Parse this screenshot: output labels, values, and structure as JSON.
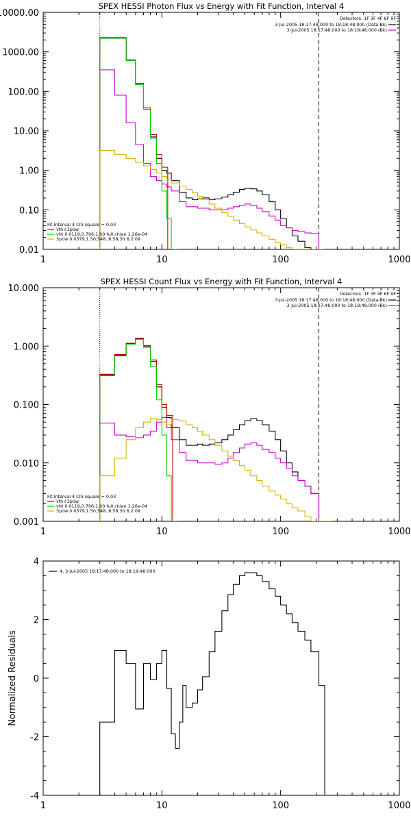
{
  "chart_data": [
    {
      "type": "line",
      "title": "SPEX HESSI Photon Flux vs Energy with Fit Function, Interval 4",
      "xlabel": "",
      "ylabel": "",
      "xscale": "log",
      "yscale": "log",
      "xlim": [
        1,
        1000
      ],
      "ylim": [
        0.01,
        10000
      ],
      "x_ticks": [
        "1",
        "10",
        "100",
        "1000"
      ],
      "y_ticks": [
        "0.01",
        "0.10",
        "1.00",
        "10.00",
        "100.00",
        "1000.00",
        "10000.00"
      ],
      "vlines": [
        {
          "x": 3,
          "style": "dotted"
        },
        {
          "x": 210,
          "style": "dashed"
        }
      ],
      "legend_topright": {
        "detectors": "Detectors: 1F 3F 4F 6F 9F",
        "entries": [
          "3-Jul-2005 18:17:48.000 to 18:18:48.000 (Data-Bk)",
          "3-Jul-2005 18:17:48.000 to 18:18:48.000 (Bk)"
        ]
      },
      "legend_bottomleft": {
        "header": "Fit Interval  4    Chi-square = 0.03",
        "entries": [
          "vth+3pow",
          "vth 0.0119,0.796,1.00  full chian 1.26e-04",
          "3pow 0.0579,1.50,548.,8.58,30.6,2.09"
        ]
      },
      "series": [
        {
          "name": "3-Jul-2005 18:17:48.000 to 18:18:48.000 (Data-Bk)",
          "color": "#000000",
          "x": [
            3,
            4,
            5,
            6,
            7,
            8,
            9,
            10,
            11,
            12,
            14,
            16,
            18,
            20,
            22,
            25,
            28,
            32,
            36,
            40,
            45,
            50,
            56,
            63,
            70,
            80,
            90,
            100,
            112,
            125,
            140,
            160,
            180,
            210
          ],
          "y": [
            2200,
            2200,
            600,
            150,
            35,
            7,
            2,
            1,
            0.85,
            0.55,
            0.28,
            0.2,
            0.18,
            0.19,
            0.2,
            0.18,
            0.19,
            0.21,
            0.24,
            0.28,
            0.33,
            0.35,
            0.34,
            0.3,
            0.24,
            0.16,
            0.1,
            0.06,
            0.035,
            0.022,
            0.016,
            0.011,
            0.01,
            0.01
          ]
        },
        {
          "name": "3-Jul-2005 18:17:48.000 to 18:18:48.000 (Bk)",
          "color": "#cc00cc",
          "x": [
            3,
            4,
            5,
            6,
            7,
            8,
            9,
            10,
            11,
            12,
            14,
            16,
            18,
            20,
            22,
            25,
            28,
            32,
            36,
            40,
            45,
            50,
            56,
            63,
            70,
            80,
            90,
            100,
            112,
            125,
            140,
            160,
            180,
            210
          ],
          "y": [
            350,
            80,
            16,
            4.5,
            1.5,
            0.7,
            0.55,
            0.45,
            0.38,
            0.3,
            0.16,
            0.12,
            0.12,
            0.11,
            0.11,
            0.1,
            0.1,
            0.1,
            0.11,
            0.12,
            0.13,
            0.14,
            0.13,
            0.11,
            0.09,
            0.07,
            0.055,
            0.04,
            0.035,
            0.03,
            0.028,
            0.026,
            0.025,
            0.01
          ]
        },
        {
          "name": "vth+3pow",
          "color": "#cc0000",
          "x": [
            3,
            4,
            5,
            6,
            7,
            8,
            9,
            10
          ],
          "y": [
            2300,
            2300,
            630,
            160,
            38,
            8,
            2.5,
            1.2
          ]
        },
        {
          "name": "vth 0.0119,0.796,1.00  full chian 1.26e-04",
          "color": "#00cc00",
          "x": [
            3,
            4,
            5,
            6,
            7,
            8,
            9,
            10,
            11,
            12
          ],
          "y": [
            2200,
            2200,
            600,
            150,
            35,
            6.5,
            1.5,
            0.3,
            0.06,
            0.01
          ]
        },
        {
          "name": "3pow 0.0579,1.50,548.,8.58,30.6,2.09",
          "color": "#d4b000",
          "x": [
            3,
            4,
            5,
            6,
            7,
            8,
            9,
            10,
            11,
            12,
            14,
            16,
            18,
            20,
            22,
            25,
            28,
            32,
            36,
            40,
            45,
            50,
            56,
            63,
            70,
            80,
            90,
            100,
            112,
            125,
            140,
            160,
            180,
            200
          ],
          "y": [
            3.2,
            2.5,
            2,
            1.6,
            1.3,
            1.05,
            0.85,
            0.7,
            0.58,
            0.48,
            0.4,
            0.33,
            0.27,
            0.22,
            0.18,
            0.14,
            0.11,
            0.085,
            0.068,
            0.055,
            0.045,
            0.037,
            0.031,
            0.026,
            0.022,
            0.018,
            0.015,
            0.013,
            0.011,
            0.01,
            0.01,
            0.01,
            0.01,
            0.01
          ]
        }
      ]
    },
    {
      "type": "line",
      "title": "SPEX HESSI Count Flux vs Energy with Fit Function, Interval 4",
      "xlabel": "",
      "ylabel": "",
      "xscale": "log",
      "yscale": "log",
      "xlim": [
        1,
        1000
      ],
      "ylim": [
        0.001,
        10
      ],
      "x_ticks": [
        "1",
        "10",
        "100",
        "1000"
      ],
      "y_ticks": [
        "0.001",
        "0.010",
        "0.100",
        "1.000",
        "10.000"
      ],
      "vlines": [
        {
          "x": 3,
          "style": "dotted"
        },
        {
          "x": 210,
          "style": "dashed"
        }
      ],
      "legend_topright": {
        "detectors": "Detectors: 1F 3F 4F 6F 9F",
        "entries": [
          "3-Jul-2005 18:17:48.000 to 18:18:48.000 (Data-Bk)",
          "3-Jul-2005 18:17:48.000 to 18:18:48.000 (Bk)"
        ]
      },
      "legend_bottomleft": {
        "header": "Fit Interval  4    Chi-square = 0.03",
        "entries": [
          "vth+3pow",
          "vth 0.0119,0.796,1.00  full chian 1.26e-04",
          "3pow 0.0579,1.50,548.,8.58,30.6,2.09"
        ]
      },
      "series": [
        {
          "name": "3-Jul-2005 18:17:48.000 to 18:18:48.000 (Data-Bk)",
          "color": "#000000",
          "x": [
            3,
            4,
            5,
            6,
            7,
            8,
            9,
            10,
            11,
            12,
            14,
            16,
            18,
            20,
            22,
            25,
            28,
            32,
            36,
            40,
            45,
            50,
            56,
            63,
            70,
            80,
            90,
            100,
            112,
            125,
            140,
            160,
            180,
            210
          ],
          "y": [
            0.32,
            0.7,
            1.1,
            1.35,
            1.0,
            0.55,
            0.2,
            0.09,
            0.06,
            0.04,
            0.025,
            0.02,
            0.02,
            0.021,
            0.02,
            0.021,
            0.022,
            0.025,
            0.03,
            0.037,
            0.045,
            0.053,
            0.057,
            0.053,
            0.045,
            0.035,
            0.025,
            0.016,
            0.01,
            0.007,
            0.005,
            0.004,
            0.003,
            0.001
          ]
        },
        {
          "name": "3-Jul-2005 18:17:48.000 to 18:18:48.000 (Bk)",
          "color": "#cc00cc",
          "x": [
            3,
            4,
            5,
            6,
            7,
            8,
            9,
            10,
            11,
            12,
            14,
            16,
            18,
            20,
            22,
            25,
            28,
            32,
            36,
            40,
            45,
            50,
            56,
            63,
            70,
            80,
            90,
            100,
            112,
            125,
            140,
            160,
            180,
            210
          ],
          "y": [
            0.048,
            0.03,
            0.028,
            0.027,
            0.03,
            0.035,
            0.05,
            0.06,
            0.04,
            0.025,
            0.015,
            0.011,
            0.011,
            0.01,
            0.01,
            0.01,
            0.0095,
            0.01,
            0.012,
            0.015,
            0.018,
            0.021,
            0.022,
            0.02,
            0.017,
            0.015,
            0.012,
            0.01,
            0.008,
            0.006,
            0.005,
            0.004,
            0.003,
            0.001
          ]
        },
        {
          "name": "vth+3pow",
          "color": "#cc0000",
          "x": [
            3,
            4,
            5,
            6,
            7,
            8,
            9,
            10,
            11
          ],
          "y": [
            0.33,
            0.72,
            1.12,
            1.37,
            1.02,
            0.58,
            0.22,
            0.1,
            0.065
          ]
        },
        {
          "name": "vth 0.0119,0.796,1.00  full chian 1.26e-04",
          "color": "#00cc00",
          "x": [
            3,
            4,
            5,
            6,
            7,
            8,
            9,
            10,
            11,
            12
          ],
          "y": [
            0.31,
            0.68,
            1.08,
            1.3,
            0.95,
            0.45,
            0.12,
            0.03,
            0.006,
            0.001
          ]
        },
        {
          "name": "3pow 0.0579,1.50,548.,8.58,30.6,2.09",
          "color": "#d4b000",
          "x": [
            3,
            4,
            5,
            6,
            7,
            8,
            9,
            10,
            11,
            12,
            14,
            16,
            18,
            20,
            22,
            25,
            28,
            32,
            36,
            40,
            45,
            50,
            56,
            63,
            70,
            80,
            90,
            100,
            112,
            125,
            140,
            160,
            180,
            210,
            240
          ],
          "y": [
            0.006,
            0.012,
            0.025,
            0.04,
            0.05,
            0.057,
            0.055,
            0.05,
            0.046,
            0.055,
            0.052,
            0.045,
            0.04,
            0.035,
            0.03,
            0.025,
            0.02,
            0.016,
            0.013,
            0.011,
            0.009,
            0.0075,
            0.006,
            0.005,
            0.004,
            0.0033,
            0.0028,
            0.0024,
            0.002,
            0.0017,
            0.0015,
            0.0012,
            0.001,
            0.001,
            0.001
          ]
        }
      ]
    },
    {
      "type": "line",
      "title": "",
      "xlabel": "",
      "ylabel": "Normalized Residuals",
      "xscale": "log",
      "yscale": "linear",
      "xlim": [
        1,
        1000
      ],
      "ylim": [
        -4,
        4
      ],
      "x_ticks": [
        "1",
        "10",
        "100",
        "1000"
      ],
      "y_ticks": [
        "-4",
        "-2",
        "0",
        "2",
        "4"
      ],
      "legend": {
        "entries": [
          "4, 3-Jul-2005 18:17:48.000 to 18:18:48.000"
        ]
      },
      "series": [
        {
          "name": "4, 3-Jul-2005 18:17:48.000 to 18:18:48.000",
          "color": "#000000",
          "x": [
            3,
            4,
            5,
            6,
            7,
            8,
            9,
            10,
            11,
            12,
            13,
            14,
            15,
            16,
            18,
            20,
            22,
            25,
            28,
            32,
            36,
            40,
            45,
            50,
            56,
            63,
            70,
            80,
            90,
            100,
            112,
            125,
            140,
            160,
            180,
            210
          ],
          "y": [
            -1.5,
            0.95,
            0.5,
            -1.05,
            0.5,
            -0.05,
            0.5,
            0.95,
            -0.35,
            -1.9,
            -2.4,
            -1.5,
            -0.25,
            -1.0,
            -0.85,
            -0.4,
            0.05,
            0.9,
            1.6,
            2.3,
            2.85,
            3.2,
            3.5,
            3.6,
            3.6,
            3.5,
            3.3,
            3.05,
            2.8,
            2.5,
            2.2,
            1.9,
            1.6,
            1.3,
            0.9,
            -0.25
          ]
        }
      ]
    }
  ]
}
